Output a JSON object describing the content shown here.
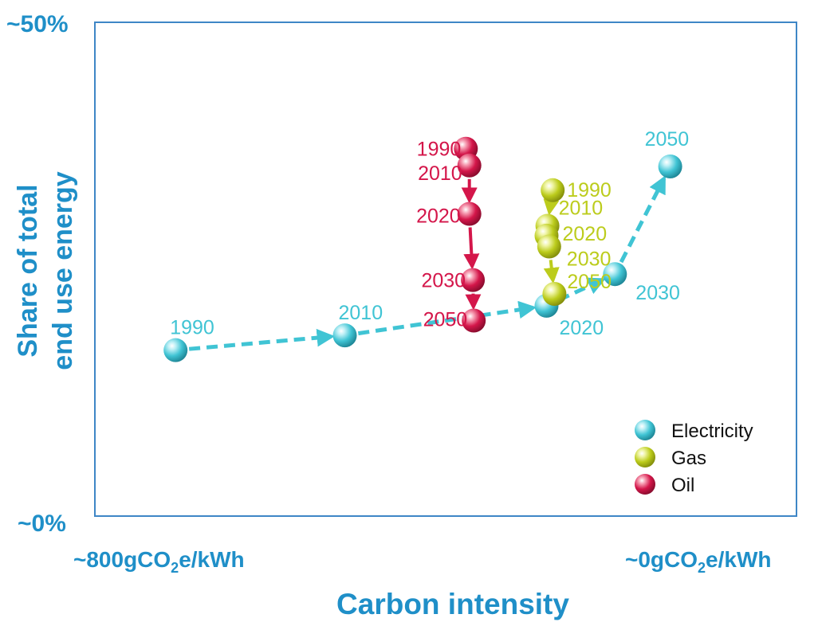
{
  "chart_data": {
    "type": "scatter",
    "title": "",
    "xlabel": "Carbon intensity",
    "ylabel_line1": "Share of total",
    "ylabel_line2": "end use energy",
    "x_tick_left": {
      "prefix": "~800gCO",
      "sub": "2",
      "suffix": "e/kWh"
    },
    "x_tick_right": {
      "prefix": "~0gCO",
      "sub": "2",
      "suffix": "e/kWh"
    },
    "y_tick_top": "~50%",
    "y_tick_bottom": "~0%",
    "xlim": [
      800,
      0
    ],
    "ylim": [
      0,
      50
    ],
    "grid": false,
    "legend_position": "bottom-right",
    "colors": {
      "axis_text": "#1f8fc8",
      "frame": "#3e86c6",
      "Electricity": "#40c4d4",
      "Gas": "#bccc1c",
      "Oil": "#d4164a"
    },
    "series": [
      {
        "name": "Electricity",
        "points": [
          {
            "year": "1990",
            "x": 708,
            "y": 16.8
          },
          {
            "year": "2010",
            "x": 515,
            "y": 18.3
          },
          {
            "year": "2020",
            "x": 285,
            "y": 21.3
          },
          {
            "year": "2030",
            "x": 207,
            "y": 24.5
          },
          {
            "year": "2050",
            "x": 144,
            "y": 35.4
          }
        ]
      },
      {
        "name": "Gas",
        "points": [
          {
            "year": "1990",
            "x": 278,
            "y": 33.0
          },
          {
            "year": "2010",
            "x": 284,
            "y": 29.4
          },
          {
            "year": "2020",
            "x": 285,
            "y": 28.4
          },
          {
            "year": "2030",
            "x": 282,
            "y": 27.3
          },
          {
            "year": "2050",
            "x": 276,
            "y": 22.5
          }
        ]
      },
      {
        "name": "Oil",
        "points": [
          {
            "year": "1990",
            "x": 377,
            "y": 37.2
          },
          {
            "year": "2010",
            "x": 373,
            "y": 35.5
          },
          {
            "year": "2020",
            "x": 373,
            "y": 30.6
          },
          {
            "year": "2030",
            "x": 369,
            "y": 23.9
          },
          {
            "year": "2050",
            "x": 368,
            "y": 19.8
          }
        ]
      }
    ]
  }
}
